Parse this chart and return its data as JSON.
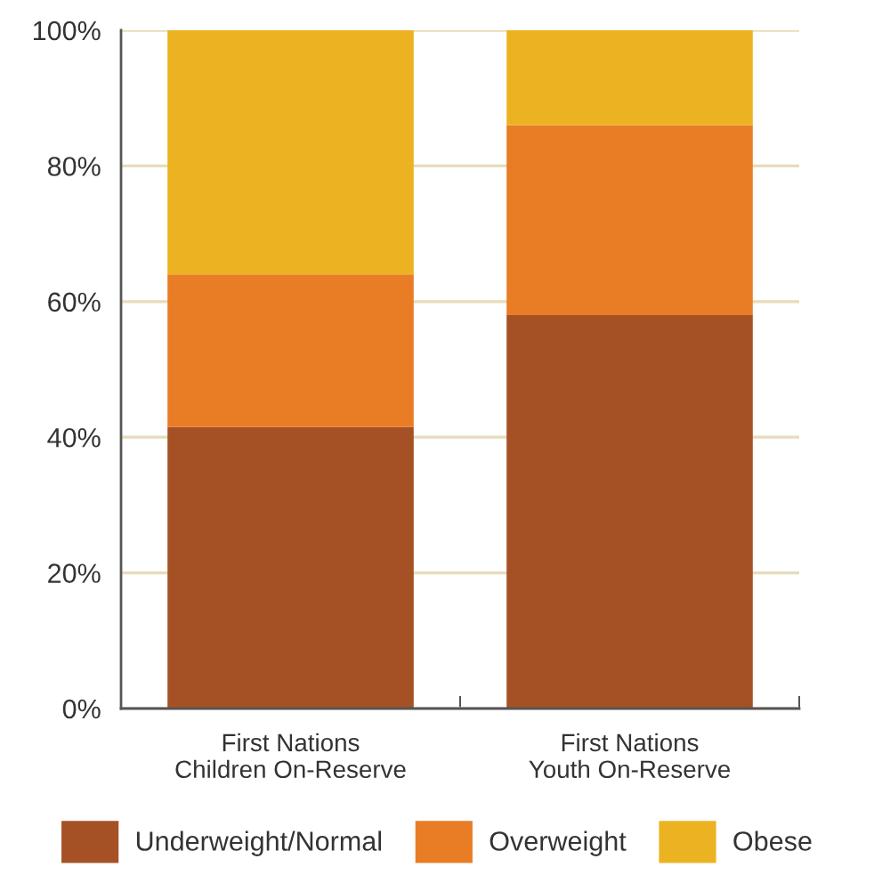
{
  "chart_data": {
    "type": "bar",
    "stacked": true,
    "categories": [
      "First Nations\nChildren On-Reserve",
      "First Nations\nYouth On-Reserve"
    ],
    "series": [
      {
        "name": "Underweight/Normal",
        "color": "#a65125",
        "values": [
          41.5,
          58
        ]
      },
      {
        "name": "Overweight",
        "color": "#e87d26",
        "values": [
          22.5,
          28
        ]
      },
      {
        "name": "Obese",
        "color": "#ebb321",
        "values": [
          36,
          14
        ]
      }
    ],
    "ylim": [
      0,
      100
    ],
    "yticks": [
      {
        "value": 0,
        "label": "0%"
      },
      {
        "value": 20,
        "label": "20%"
      },
      {
        "value": 40,
        "label": "40%"
      },
      {
        "value": 60,
        "label": "60%"
      },
      {
        "value": 80,
        "label": "80%"
      },
      {
        "value": 100,
        "label": "100%"
      }
    ],
    "grid": "y",
    "legend": "bottom"
  }
}
